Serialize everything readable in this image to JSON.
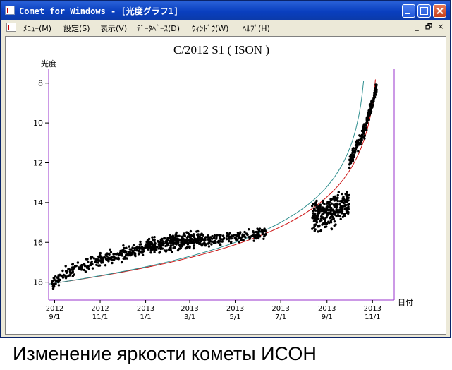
{
  "window": {
    "title": "Comet for Windows - [光度グラフ1]",
    "controls": [
      "minimize-icon",
      "maximize-icon",
      "close-icon"
    ],
    "titlebar_color": "#0a3fbf"
  },
  "menu": {
    "items": [
      {
        "name": "menu-main",
        "label": "ﾒﾆｭｰ(M)"
      },
      {
        "name": "menu-settings",
        "label": "設定(S)"
      },
      {
        "name": "menu-view",
        "label": "表示(V)"
      },
      {
        "name": "menu-database",
        "label": "ﾃﾞｰﾀﾍﾞｰｽ(D)"
      },
      {
        "name": "menu-window",
        "label": "ｳｨﾝﾄﾞｳ(W)"
      },
      {
        "name": "menu-help",
        "label": "ﾍﾙﾌﾟ(H)"
      }
    ],
    "mdi_controls": [
      "_",
      "🗗",
      "×"
    ]
  },
  "chart_data": {
    "type": "scatter",
    "title": "C/2012 S1 ( ISON )",
    "ylabel": "光度",
    "xlabel": "日付",
    "y_inverted": true,
    "ylim": [
      18.9,
      7.3
    ],
    "yticks": [
      8,
      10,
      12,
      14,
      16,
      18
    ],
    "xticks": [
      {
        "year": "2012",
        "date": "9/1",
        "day": 0
      },
      {
        "year": "2012",
        "date": "11/1",
        "day": 61
      },
      {
        "year": "2013",
        "date": "1/1",
        "day": 122
      },
      {
        "year": "2013",
        "date": "3/1",
        "day": 181
      },
      {
        "year": "2013",
        "date": "5/1",
        "day": 242
      },
      {
        "year": "2013",
        "date": "7/1",
        "day": 303
      },
      {
        "year": "2013",
        "date": "9/1",
        "day": 365
      },
      {
        "year": "2013",
        "date": "11/1",
        "day": 426
      }
    ],
    "xlim_days": [
      -8,
      455
    ],
    "series": [
      {
        "role": "observations",
        "color": "#000000",
        "clusters": [
          {
            "from": -5,
            "to": 10,
            "n": 35,
            "y0": 18.1,
            "y1": 17.7,
            "spread": 0.45
          },
          {
            "from": 10,
            "to": 60,
            "n": 80,
            "y0": 17.6,
            "y1": 16.9,
            "spread": 0.45
          },
          {
            "from": 60,
            "to": 120,
            "n": 140,
            "y0": 16.9,
            "y1": 16.3,
            "spread": 0.5
          },
          {
            "from": 120,
            "to": 200,
            "n": 320,
            "y0": 16.2,
            "y1": 15.8,
            "spread": 0.55
          },
          {
            "from": 200,
            "to": 285,
            "n": 160,
            "y0": 15.9,
            "y1": 15.5,
            "spread": 0.45
          },
          {
            "from": 345,
            "to": 395,
            "n": 280,
            "y0": 14.8,
            "y1": 14.0,
            "spread": 1.1
          },
          {
            "from": 395,
            "to": 418,
            "n": 90,
            "y0": 12.0,
            "y1": 10.2,
            "spread": 0.6
          },
          {
            "from": 418,
            "to": 432,
            "n": 90,
            "y0": 9.9,
            "y1": 8.2,
            "spread": 0.45
          }
        ]
      },
      {
        "role": "model-curve",
        "color": "#cc1111",
        "start_mag": 18.05,
        "k": 0.0105,
        "days_from_end": 436
      },
      {
        "role": "model-curve",
        "color": "#2f8f8f",
        "start_mag": 18.05,
        "k": 0.0118,
        "days_from_end": 420
      }
    ],
    "grid": false,
    "plot_border_color": "#9933cc"
  },
  "caption": "Изменение яркости кометы  ИСОН"
}
